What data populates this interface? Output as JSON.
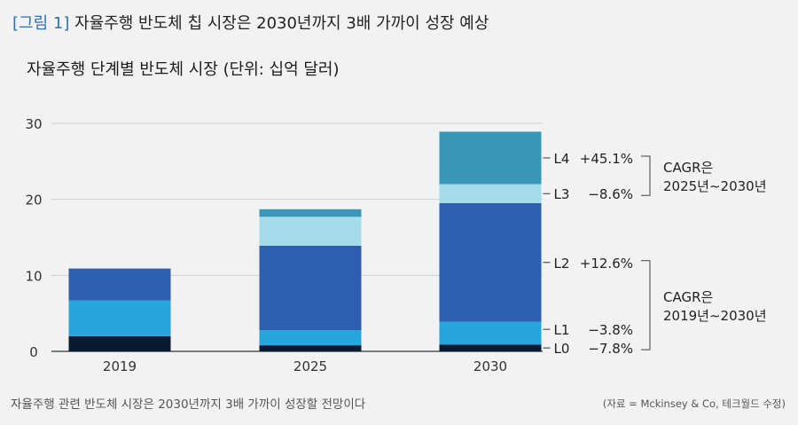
{
  "figure": {
    "label": "[그림 1]",
    "title": "자율주행 반도체 칩 시장은 2030년까지 3배 가까이 성장 예상"
  },
  "caption": "자율주행 관련 반도체 시장은 2030년까지 3배 가까이 성장할 전망이다",
  "source": "(자료 = Mckinsey & Co, 테크월드 수정)",
  "chart_data": {
    "type": "bar",
    "stacked": true,
    "title": "자율주행 단계별 반도체 시장 (단위: 십억 달러)",
    "xlabel": "",
    "ylabel": "",
    "categories": [
      "2019",
      "2025",
      "2030"
    ],
    "ylim": [
      0,
      30
    ],
    "yticks": [
      0,
      10,
      20,
      30
    ],
    "grid": true,
    "series": [
      {
        "name": "L0",
        "color": "#0a1a33",
        "values": [
          2.0,
          0.8,
          0.9
        ]
      },
      {
        "name": "L1",
        "color": "#27a6de",
        "values": [
          4.7,
          2.0,
          3.0
        ]
      },
      {
        "name": "L2",
        "color": "#2d5fae",
        "values": [
          4.2,
          11.1,
          15.6
        ]
      },
      {
        "name": "L3",
        "color": "#a5dcea",
        "values": [
          0.0,
          3.8,
          2.5
        ]
      },
      {
        "name": "L4",
        "color": "#3a97b8",
        "values": [
          0.0,
          1.0,
          6.9
        ]
      }
    ],
    "growth_labels": [
      {
        "series": "L4",
        "value": "+45.1%"
      },
      {
        "series": "L3",
        "value": "−8.6%"
      },
      {
        "series": "L2",
        "value": "+12.6%"
      },
      {
        "series": "L1",
        "value": "−3.8%"
      },
      {
        "series": "L0",
        "value": "−7.8%"
      }
    ],
    "annotations": [
      {
        "text_line1": "CAGR은",
        "text_line2": "2025년∼2030년",
        "series": [
          "L4",
          "L3"
        ]
      },
      {
        "text_line1": "CAGR은",
        "text_line2": "2019년∼2030년",
        "series": [
          "L2",
          "L1",
          "L0"
        ]
      }
    ]
  }
}
